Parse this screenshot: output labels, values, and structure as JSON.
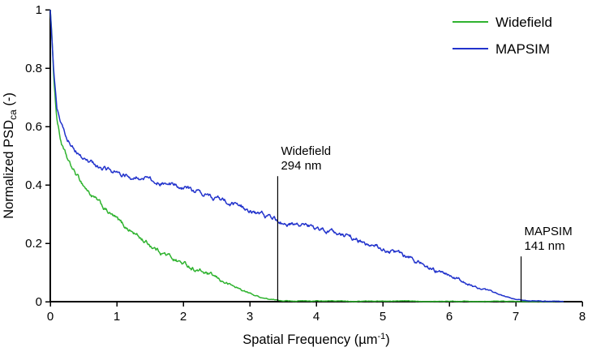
{
  "chart_data": {
    "type": "line",
    "title": "",
    "xlabel_parts": {
      "main": "Spatial Frequency (µm",
      "sup": "-1",
      "close": ")"
    },
    "ylabel_parts": {
      "main": "Normalized PSD",
      "sub": "ca",
      "close": " (-)"
    },
    "xlim": [
      0,
      8
    ],
    "ylim": [
      0,
      1
    ],
    "xticks": [
      0,
      1,
      2,
      3,
      4,
      5,
      6,
      7,
      8
    ],
    "yticks": [
      0,
      0.2,
      0.4,
      0.6,
      0.8,
      1
    ],
    "grid": false,
    "legend": {
      "position": "top-right",
      "entries": [
        {
          "label": "Widefield",
          "color": "#2fb32f"
        },
        {
          "label": "MAPSIM",
          "color": "#2233cc"
        }
      ]
    },
    "series": [
      {
        "name": "Widefield",
        "color": "#2fb32f",
        "points": [
          [
            0,
            1.0
          ],
          [
            0.02,
            0.93
          ],
          [
            0.05,
            0.78
          ],
          [
            0.08,
            0.68
          ],
          [
            0.1,
            0.63
          ],
          [
            0.15,
            0.56
          ],
          [
            0.2,
            0.52
          ],
          [
            0.25,
            0.49
          ],
          [
            0.3,
            0.465
          ],
          [
            0.4,
            0.43
          ],
          [
            0.5,
            0.4
          ],
          [
            0.6,
            0.37
          ],
          [
            0.7,
            0.345
          ],
          [
            0.8,
            0.32
          ],
          [
            0.9,
            0.3
          ],
          [
            1.0,
            0.28
          ],
          [
            1.1,
            0.26
          ],
          [
            1.2,
            0.245
          ],
          [
            1.4,
            0.21
          ],
          [
            1.6,
            0.18
          ],
          [
            1.8,
            0.155
          ],
          [
            2.0,
            0.13
          ],
          [
            2.2,
            0.11
          ],
          [
            2.4,
            0.09
          ],
          [
            2.6,
            0.068
          ],
          [
            2.8,
            0.048
          ],
          [
            3.0,
            0.028
          ],
          [
            3.1,
            0.02
          ],
          [
            3.2,
            0.013
          ],
          [
            3.3,
            0.008
          ],
          [
            3.4,
            0.005
          ],
          [
            3.6,
            0.003
          ],
          [
            4.0,
            0.002
          ],
          [
            5.0,
            0.002
          ],
          [
            6.0,
            0.002
          ],
          [
            7.0,
            0.001
          ],
          [
            7.72,
            0.001
          ]
        ]
      },
      {
        "name": "MAPSIM",
        "color": "#2233cc",
        "points": [
          [
            0,
            1.0
          ],
          [
            0.02,
            0.92
          ],
          [
            0.05,
            0.8
          ],
          [
            0.08,
            0.71
          ],
          [
            0.1,
            0.66
          ],
          [
            0.15,
            0.615
          ],
          [
            0.2,
            0.585
          ],
          [
            0.25,
            0.56
          ],
          [
            0.3,
            0.545
          ],
          [
            0.4,
            0.515
          ],
          [
            0.5,
            0.49
          ],
          [
            0.6,
            0.475
          ],
          [
            0.7,
            0.465
          ],
          [
            0.8,
            0.455
          ],
          [
            0.9,
            0.448
          ],
          [
            1.0,
            0.443
          ],
          [
            1.2,
            0.432
          ],
          [
            1.4,
            0.424
          ],
          [
            1.6,
            0.415
          ],
          [
            1.8,
            0.403
          ],
          [
            2.0,
            0.39
          ],
          [
            2.2,
            0.378
          ],
          [
            2.4,
            0.362
          ],
          [
            2.6,
            0.345
          ],
          [
            2.8,
            0.328
          ],
          [
            3.0,
            0.31
          ],
          [
            3.2,
            0.295
          ],
          [
            3.4,
            0.28
          ],
          [
            3.5,
            0.272
          ],
          [
            3.7,
            0.262
          ],
          [
            4.0,
            0.25
          ],
          [
            4.2,
            0.24
          ],
          [
            4.4,
            0.228
          ],
          [
            4.6,
            0.214
          ],
          [
            4.8,
            0.198
          ],
          [
            5.0,
            0.182
          ],
          [
            5.2,
            0.165
          ],
          [
            5.4,
            0.148
          ],
          [
            5.6,
            0.128
          ],
          [
            5.8,
            0.108
          ],
          [
            6.0,
            0.088
          ],
          [
            6.2,
            0.068
          ],
          [
            6.4,
            0.05
          ],
          [
            6.6,
            0.034
          ],
          [
            6.8,
            0.02
          ],
          [
            7.0,
            0.009
          ],
          [
            7.1,
            0.005
          ],
          [
            7.2,
            0.003
          ],
          [
            7.4,
            0.002
          ],
          [
            7.72,
            0.001
          ]
        ]
      }
    ],
    "annotations": [
      {
        "x": 3.42,
        "line_top_y": 0.43,
        "label_lines": [
          "Widefield",
          "294 nm"
        ]
      },
      {
        "x": 7.08,
        "line_top_y": 0.155,
        "label_lines": [
          "MAPSIM",
          "141 nm"
        ]
      }
    ]
  },
  "styles": {
    "axis_color": "#000000",
    "annotation_line_color": "#000000",
    "background": "#ffffff"
  }
}
